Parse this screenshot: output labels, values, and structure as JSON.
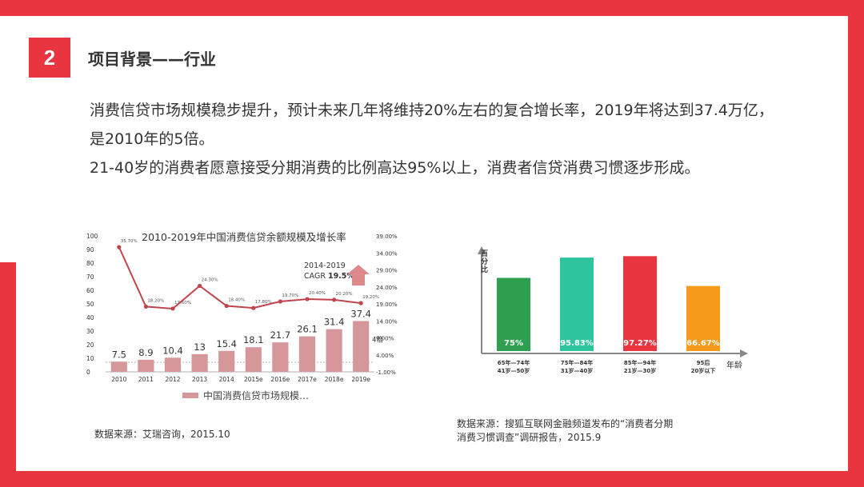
{
  "slide": {
    "number": "2",
    "title": "项目背景——行业",
    "body_lines": [
      "消费信贷市场规模稳步提升，预计未来几年将维持20%左右的复合增长率，2019年将达到37.4万亿，",
      "是2010年的5倍。",
      "21-40岁的消费者愿意接受分期消费的比例高达95%以上，消费者信贷消费习惯逐步形成。"
    ],
    "source_left": "数据来源：艾瑞咨询，2015.10",
    "source_right_lines": [
      "数据来源：搜狐互联网金融频道发布的“消费者分期",
      "消费习惯调查”调研报告，2015.9"
    ]
  },
  "colors": {
    "accent": "#e8353f",
    "bar1": "#d6979b",
    "line1": "#c0444b",
    "cagr_arrow": "#e0898d"
  },
  "chart_data": [
    {
      "type": "bar",
      "title": "2010-2019年中国消费信贷余额规模及增长率",
      "categories": [
        "2010",
        "2011",
        "2012",
        "2013",
        "2014",
        "2015e",
        "2016e",
        "2017e",
        "2018e",
        "2019e"
      ],
      "series": [
        {
          "name": "中国消费信贷市场规模…",
          "values": [
            7.5,
            8.9,
            10.4,
            13,
            15.4,
            18.1,
            21.7,
            26.1,
            31.4,
            37.4
          ]
        }
      ],
      "line_series": {
        "values": [
          35.7,
          18.2,
          17.6,
          24.3,
          18.4,
          17.8,
          19.7,
          20.4,
          20.2,
          19.2
        ],
        "labels": [
          "35.70%",
          "18.20%",
          "17.60%",
          "24.30%",
          "18.40%",
          "17.80%",
          "19.70%",
          "20.40%",
          "20.20%",
          "19.20%"
        ]
      },
      "ylim": [
        0,
        100
      ],
      "yticks": [
        "0",
        "10",
        "20",
        "30",
        "40",
        "50",
        "60",
        "70",
        "80",
        "90",
        "100"
      ],
      "y2lim": [
        -1,
        39
      ],
      "y2ticks": [
        "-1.00%",
        "4.00%",
        "9.00%",
        "14.00%",
        "19.00%",
        "24.00%",
        "29.00%",
        "34.00%",
        "39.00%"
      ],
      "annotation": {
        "line1": "2014-2019",
        "line2_prefix": "CAGR ",
        "line2_value": "19.5%"
      },
      "unit_label": "4倍"
    },
    {
      "type": "bar",
      "title": "",
      "ylabel": "百分比",
      "xlabel": "年龄",
      "categories": [
        [
          "65年—74年",
          "41岁—50岁"
        ],
        [
          "75年—84年",
          "31岁—40岁"
        ],
        [
          "85年—94年",
          "21岁—30岁"
        ],
        [
          "95后",
          "20岁以下"
        ]
      ],
      "values": [
        75,
        95.83,
        97.27,
        66.67
      ],
      "labels": [
        "75%",
        "95.83%",
        "97.27%",
        "66.67%"
      ],
      "colors": [
        "#2e9e4f",
        "#2ec49e",
        "#e8353f",
        "#f59a1b"
      ]
    }
  ]
}
